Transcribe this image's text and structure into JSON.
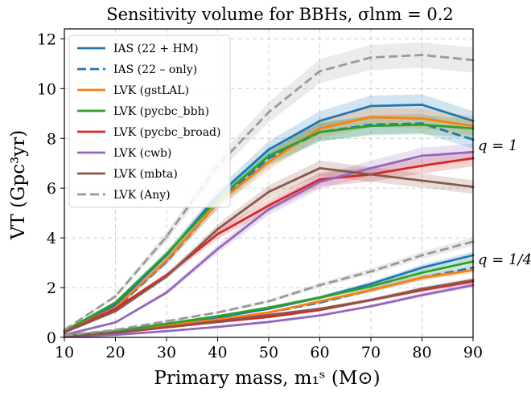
{
  "chart_data": {
    "type": "line",
    "title": "Sensitivity volume for BBHs, σlnm = 0.2",
    "xlabel": "Primary mass, m₁ˢ (M⊙)",
    "ylabel": "VT (Gpc³yr)",
    "xlim": [
      10,
      90
    ],
    "ylim": [
      0,
      12.4
    ],
    "x": [
      10,
      20,
      30,
      40,
      50,
      60,
      70,
      80,
      90
    ],
    "xticks": [
      "10",
      "20",
      "30",
      "40",
      "50",
      "60",
      "70",
      "80",
      "90"
    ],
    "yticks": [
      "0",
      "2",
      "4",
      "6",
      "8",
      "10",
      "12"
    ],
    "grid": true,
    "legend_position": "top-left",
    "annotations": [
      "q = 1",
      "q = 1/4"
    ],
    "series": [
      {
        "name": "IAS (22 + HM)",
        "color": "#1f77b4",
        "dash": "solid",
        "q1": [
          0.25,
          1.3,
          3.3,
          5.7,
          7.55,
          8.7,
          9.3,
          9.35,
          8.7
        ],
        "q14": [
          0.05,
          0.22,
          0.5,
          0.8,
          1.15,
          1.6,
          2.15,
          2.8,
          3.3
        ]
      },
      {
        "name": "IAS (22 – only)",
        "color": "#1f77b4",
        "dash": "dashed",
        "q1": [
          0.2,
          1.15,
          3.05,
          5.4,
          7.2,
          8.25,
          8.55,
          8.6,
          7.95
        ],
        "q14": [
          0.05,
          0.2,
          0.45,
          0.7,
          1.0,
          1.4,
          1.9,
          2.4,
          2.8
        ]
      },
      {
        "name": "LVK (gstLAL)",
        "color": "#ff7f0e",
        "dash": "solid",
        "q1": [
          0.2,
          1.2,
          3.1,
          5.4,
          7.05,
          8.4,
          8.85,
          8.8,
          8.5
        ],
        "q14": [
          0.05,
          0.22,
          0.48,
          0.72,
          1.0,
          1.45,
          1.9,
          2.4,
          2.7
        ]
      },
      {
        "name": "LVK (pycbc_bbh)",
        "color": "#2ca02c",
        "dash": "solid",
        "q1": [
          0.25,
          1.4,
          3.35,
          5.55,
          7.3,
          8.25,
          8.5,
          8.55,
          8.4
        ],
        "q14": [
          0.06,
          0.25,
          0.55,
          0.85,
          1.2,
          1.6,
          2.05,
          2.6,
          3.05
        ]
      },
      {
        "name": "LVK (pycbc_broad)",
        "color": "#d62728",
        "dash": "solid",
        "q1": [
          0.2,
          1.15,
          2.5,
          4.15,
          5.3,
          6.35,
          6.55,
          6.9,
          7.2
        ],
        "q14": [
          0.04,
          0.18,
          0.4,
          0.62,
          0.82,
          1.1,
          1.5,
          1.9,
          2.25
        ]
      },
      {
        "name": "LVK (cwb)",
        "color": "#9467bd",
        "dash": "solid",
        "q1": [
          0.1,
          0.6,
          1.8,
          3.55,
          5.15,
          6.25,
          6.8,
          7.3,
          7.45
        ],
        "q14": [
          0.02,
          0.1,
          0.25,
          0.42,
          0.62,
          0.88,
          1.25,
          1.7,
          2.1
        ]
      },
      {
        "name": "LVK (mbta)",
        "color": "#8c564b",
        "dash": "solid",
        "q1": [
          0.2,
          1.05,
          2.45,
          4.35,
          5.85,
          6.8,
          6.55,
          6.3,
          6.05
        ],
        "q14": [
          0.04,
          0.18,
          0.42,
          0.65,
          0.9,
          1.15,
          1.5,
          1.95,
          2.3
        ]
      },
      {
        "name": "LVK (Any)",
        "color": "#999999",
        "dash": "dashed",
        "q1": [
          0.3,
          1.65,
          4.05,
          6.9,
          9.05,
          10.7,
          11.25,
          11.35,
          11.15
        ],
        "q14": [
          0.08,
          0.3,
          0.65,
          1.0,
          1.45,
          2.1,
          2.65,
          3.3,
          3.85
        ]
      }
    ]
  }
}
